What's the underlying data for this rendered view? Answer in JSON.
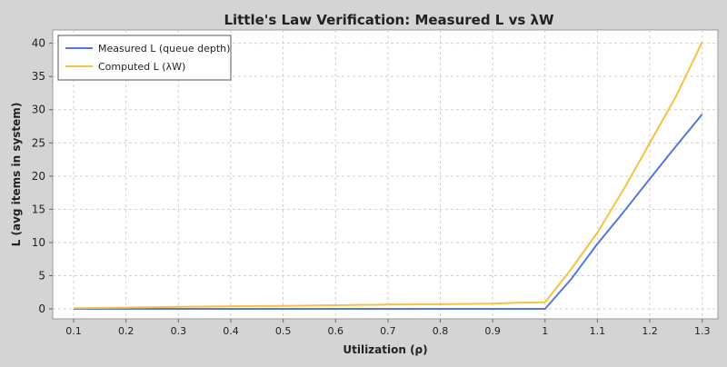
{
  "chart_data": {
    "type": "line",
    "title": "Little's Law Verification: Measured L vs λW",
    "xlabel": "Utilization (ρ)",
    "ylabel": "L (avg items in system)",
    "xlim": [
      0.06,
      1.33
    ],
    "ylim": [
      -1.5,
      42
    ],
    "xticks": [
      0.1,
      0.2,
      0.3,
      0.4,
      0.5,
      0.6,
      0.7,
      0.8,
      0.9,
      1,
      1.1,
      1.2,
      1.3
    ],
    "xtick_labels": [
      "0.1",
      "0.2",
      "0.3",
      "0.4",
      "0.5",
      "0.6",
      "0.7",
      "0.8",
      "0.9",
      "1",
      "1.1",
      "1.2",
      "1.3"
    ],
    "yticks": [
      0,
      5,
      10,
      15,
      20,
      25,
      30,
      35,
      40
    ],
    "ytick_labels": [
      "0",
      "5",
      "10",
      "15",
      "20",
      "25",
      "30",
      "35",
      "40"
    ],
    "grid": true,
    "legend_position": "top-left",
    "series": [
      {
        "name": "Measured L (queue depth)",
        "color": "#5577dd",
        "x": [
          0.1,
          0.2,
          0.3,
          0.4,
          0.5,
          0.6,
          0.7,
          0.8,
          0.9,
          0.95,
          1.0,
          1.05,
          1.1,
          1.15,
          1.2,
          1.25,
          1.3
        ],
        "y": [
          0.0,
          0.0,
          0.0,
          0.0,
          0.0,
          0.0,
          0.0,
          0.0,
          0.0,
          0.0,
          0.0,
          4.5,
          9.8,
          14.6,
          19.6,
          24.5,
          29.3
        ]
      },
      {
        "name": "Computed L (λW)",
        "color": "#f5c242",
        "x": [
          0.1,
          0.2,
          0.3,
          0.4,
          0.5,
          0.6,
          0.7,
          0.8,
          0.9,
          0.95,
          1.0,
          1.05,
          1.1,
          1.15,
          1.2,
          1.25,
          1.3
        ],
        "y": [
          0.1,
          0.2,
          0.3,
          0.4,
          0.45,
          0.55,
          0.65,
          0.7,
          0.8,
          0.95,
          1.0,
          6.0,
          11.5,
          18.0,
          25.0,
          32.0,
          40.2
        ]
      }
    ]
  }
}
